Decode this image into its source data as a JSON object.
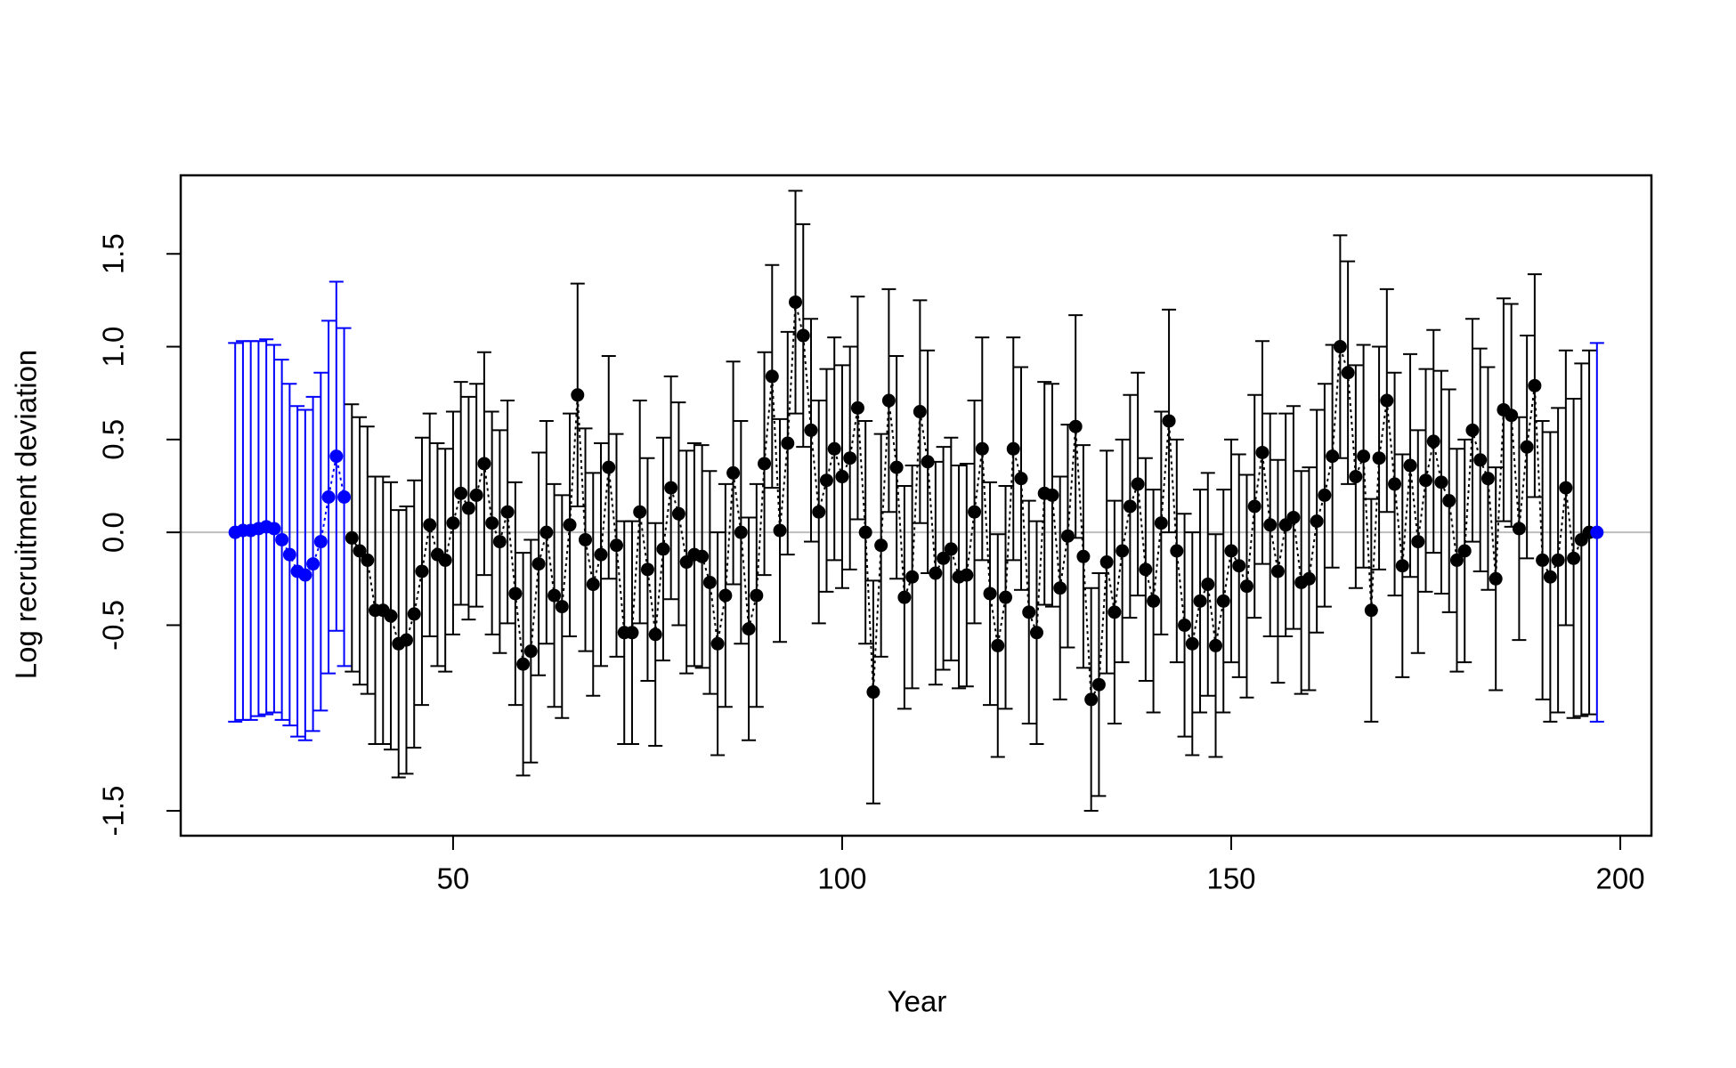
{
  "chart_data": {
    "type": "errorbar",
    "x_label": "Year",
    "y_label": "Log recruitment deviation",
    "xlim": [
      15,
      204
    ],
    "ylim": [
      -1.634,
      1.923
    ],
    "xticks": [
      50,
      100,
      150,
      200
    ],
    "yticks": [
      -1.5,
      -0.5,
      {
        "value": 0,
        "label": "0.0"
      },
      0.5,
      {
        "value": 1,
        "label": "1.0"
      },
      1.5
    ],
    "hline": 0,
    "hline_color": "#bebebe",
    "series": [
      {
        "color": "#0000ff",
        "x": [
          22,
          23,
          24,
          25,
          26,
          27,
          28,
          29,
          30,
          31,
          32,
          33,
          34,
          35,
          36
        ],
        "values": [
          0.0,
          0.01,
          0.01,
          0.02,
          0.03,
          0.02,
          -0.04,
          -0.12,
          -0.21,
          -0.23,
          -0.17,
          -0.05,
          0.19,
          0.41,
          0.19
        ],
        "errors": [
          1.02,
          1.02,
          1.02,
          1.01,
          1.01,
          0.99,
          0.97,
          0.92,
          0.89,
          0.89,
          0.9,
          0.91,
          0.95,
          0.94,
          0.91
        ]
      },
      {
        "color": "#000000",
        "x": [
          37,
          38,
          39,
          40,
          41,
          42,
          43,
          44,
          45,
          46,
          47,
          48,
          49,
          50,
          51,
          52,
          53,
          54,
          55,
          56,
          57,
          58,
          59,
          60,
          61,
          62,
          63,
          64,
          65,
          66,
          67,
          68,
          69,
          70,
          71,
          72,
          73,
          74,
          75,
          76,
          77,
          78,
          79,
          80,
          81,
          82,
          83,
          84,
          85,
          86,
          87,
          88,
          89,
          90,
          91,
          92,
          93,
          94,
          95,
          96,
          97,
          98,
          99,
          100,
          101,
          102,
          103,
          104,
          105,
          106,
          107,
          108,
          109,
          110,
          111,
          112,
          113,
          114,
          115,
          116,
          117,
          118,
          119,
          120,
          121,
          122,
          123,
          124,
          125,
          126,
          127,
          128,
          129,
          130,
          131,
          132,
          133,
          134,
          135,
          136,
          137,
          138,
          139,
          140,
          141,
          142,
          143,
          144,
          145,
          146,
          147,
          148,
          149,
          150,
          151,
          152,
          153,
          154,
          155,
          156,
          157,
          158,
          159,
          160,
          161,
          162,
          163,
          164,
          165,
          166,
          167,
          168,
          169,
          170,
          171,
          172,
          173,
          174,
          175,
          176,
          177,
          178,
          179,
          180,
          181,
          182,
          183,
          184,
          185,
          186,
          187,
          188,
          189,
          190,
          191,
          192,
          193,
          194,
          195,
          196
        ],
        "values": [
          -0.03,
          -0.1,
          -0.15,
          -0.42,
          -0.42,
          -0.45,
          -0.6,
          -0.58,
          -0.44,
          -0.21,
          0.04,
          -0.12,
          -0.15,
          0.05,
          0.21,
          0.13,
          0.2,
          0.37,
          0.05,
          -0.05,
          0.11,
          -0.33,
          -0.71,
          -0.64,
          -0.17,
          0.0,
          -0.34,
          -0.4,
          0.04,
          0.74,
          -0.04,
          -0.28,
          -0.12,
          0.35,
          -0.07,
          -0.54,
          -0.54,
          0.11,
          -0.2,
          -0.55,
          -0.09,
          0.24,
          0.1,
          -0.16,
          -0.12,
          -0.13,
          -0.27,
          -0.6,
          -0.34,
          0.32,
          0.0,
          -0.52,
          -0.34,
          0.37,
          0.84,
          0.01,
          0.48,
          1.24,
          1.06,
          0.55,
          0.11,
          0.28,
          0.45,
          0.3,
          0.4,
          0.67,
          0.0,
          -0.86,
          -0.07,
          0.71,
          0.35,
          -0.35,
          -0.24,
          0.65,
          0.38,
          -0.22,
          -0.14,
          -0.09,
          -0.24,
          -0.23,
          0.11,
          0.45,
          -0.33,
          -0.61,
          -0.35,
          0.45,
          0.29,
          -0.43,
          -0.54,
          0.21,
          0.2,
          -0.3,
          -0.02,
          0.57,
          -0.13,
          -0.9,
          -0.82,
          -0.16,
          -0.43,
          -0.1,
          0.14,
          0.26,
          -0.2,
          -0.37,
          0.05,
          0.6,
          -0.1,
          -0.5,
          -0.6,
          -0.37,
          -0.28,
          -0.61,
          -0.37,
          -0.1,
          -0.18,
          -0.29,
          0.14,
          0.43,
          0.04,
          -0.21,
          0.04,
          0.08,
          -0.27,
          -0.25,
          0.06,
          0.2,
          0.41,
          1.0,
          0.86,
          0.3,
          0.41,
          -0.42,
          0.4,
          0.71,
          0.26,
          -0.18,
          0.36,
          -0.05,
          0.28,
          0.49,
          0.27,
          0.17,
          -0.15,
          -0.1,
          0.55,
          0.39,
          0.29,
          -0.25,
          0.66,
          0.63,
          0.02,
          0.46,
          0.79,
          -0.15,
          -0.24,
          -0.15,
          0.24,
          -0.14,
          -0.04,
          0.0
        ],
        "errors": [
          0.72,
          0.72,
          0.72,
          0.72,
          0.72,
          0.72,
          0.72,
          0.72,
          0.72,
          0.72,
          0.6,
          0.6,
          0.6,
          0.6,
          0.6,
          0.6,
          0.6,
          0.6,
          0.6,
          0.6,
          0.6,
          0.6,
          0.6,
          0.6,
          0.6,
          0.6,
          0.6,
          0.6,
          0.6,
          0.6,
          0.6,
          0.6,
          0.6,
          0.6,
          0.6,
          0.6,
          0.6,
          0.6,
          0.6,
          0.6,
          0.6,
          0.6,
          0.6,
          0.6,
          0.6,
          0.6,
          0.6,
          0.6,
          0.6,
          0.6,
          0.6,
          0.6,
          0.6,
          0.6,
          0.6,
          0.6,
          0.6,
          0.6,
          0.6,
          0.6,
          0.6,
          0.6,
          0.6,
          0.6,
          0.6,
          0.6,
          0.6,
          0.6,
          0.6,
          0.6,
          0.6,
          0.6,
          0.6,
          0.6,
          0.6,
          0.6,
          0.6,
          0.6,
          0.6,
          0.6,
          0.6,
          0.6,
          0.6,
          0.6,
          0.6,
          0.6,
          0.6,
          0.6,
          0.6,
          0.6,
          0.6,
          0.6,
          0.6,
          0.6,
          0.6,
          0.6,
          0.6,
          0.6,
          0.6,
          0.6,
          0.6,
          0.6,
          0.6,
          0.6,
          0.6,
          0.6,
          0.6,
          0.6,
          0.6,
          0.6,
          0.6,
          0.6,
          0.6,
          0.6,
          0.6,
          0.6,
          0.6,
          0.6,
          0.6,
          0.6,
          0.6,
          0.6,
          0.6,
          0.6,
          0.6,
          0.6,
          0.6,
          0.6,
          0.6,
          0.6,
          0.6,
          0.6,
          0.6,
          0.6,
          0.6,
          0.6,
          0.6,
          0.6,
          0.6,
          0.6,
          0.6,
          0.6,
          0.6,
          0.6,
          0.6,
          0.6,
          0.6,
          0.6,
          0.6,
          0.6,
          0.6,
          0.6,
          0.6,
          0.75,
          0.78,
          0.82,
          0.74,
          0.86,
          0.95,
          0.98
        ]
      },
      {
        "color": "#0000ff",
        "x": [
          197
        ],
        "values": [
          0.0
        ],
        "errors": [
          1.02
        ]
      }
    ]
  }
}
